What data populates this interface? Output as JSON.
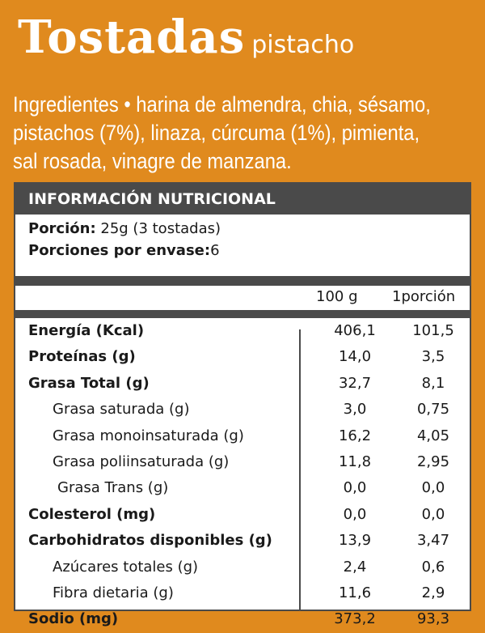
{
  "header": {
    "title": "Tostadas",
    "subtitle": "pistacho"
  },
  "ingredients": {
    "line1": "Ingredientes • harina de almendra, chia, sésamo,",
    "line2": "pistachos (7%), linaza, cúrcuma (1%), pimienta,",
    "line3": "sal rosada, vinagre de manzana."
  },
  "nutrition": {
    "heading": "INFORMACIÓN NUTRICIONAL",
    "portion_label": "Porción:",
    "portion_value": " 25g (3 tostadas)",
    "per_pack_label": "Porciones por envase:",
    "per_pack_value": "6",
    "col_100g": "100 g",
    "col_portion": "1porción",
    "rows": [
      {
        "name": "Energía (Kcal)",
        "v100": "406,1",
        "vport": "101,5"
      },
      {
        "name": "Proteínas (g)",
        "v100": "14,0",
        "vport": "3,5"
      },
      {
        "name": "Grasa Total (g)",
        "v100": "32,7",
        "vport": "8,1"
      },
      {
        "name": "Grasa saturada (g)",
        "v100": "3,0",
        "vport": "0,75"
      },
      {
        "name": "Grasa monoinsaturada (g)",
        "v100": "16,2",
        "vport": "4,05"
      },
      {
        "name": "Grasa poliinsaturada (g)",
        "v100": "11,8",
        "vport": "2,95"
      },
      {
        "name": "Grasa Trans (g)",
        "v100": "0,0",
        "vport": "0,0"
      },
      {
        "name": "Colesterol (mg)",
        "v100": "0,0",
        "vport": "0,0"
      },
      {
        "name": "Carbohidratos disponibles (g)",
        "v100": "13,9",
        "vport": "3,47"
      },
      {
        "name": "Azúcares totales (g)",
        "v100": "2,4",
        "vport": "0,6"
      },
      {
        "name": "Fibra dietaria (g)",
        "v100": "11,6",
        "vport": "2,9"
      },
      {
        "name": "Sodio (mg)",
        "v100": "373,2",
        "vport": "93,3"
      }
    ]
  },
  "colors": {
    "background": "#E08A1E",
    "panel_border": "#4a4a4a",
    "text_white": "#ffffff"
  }
}
